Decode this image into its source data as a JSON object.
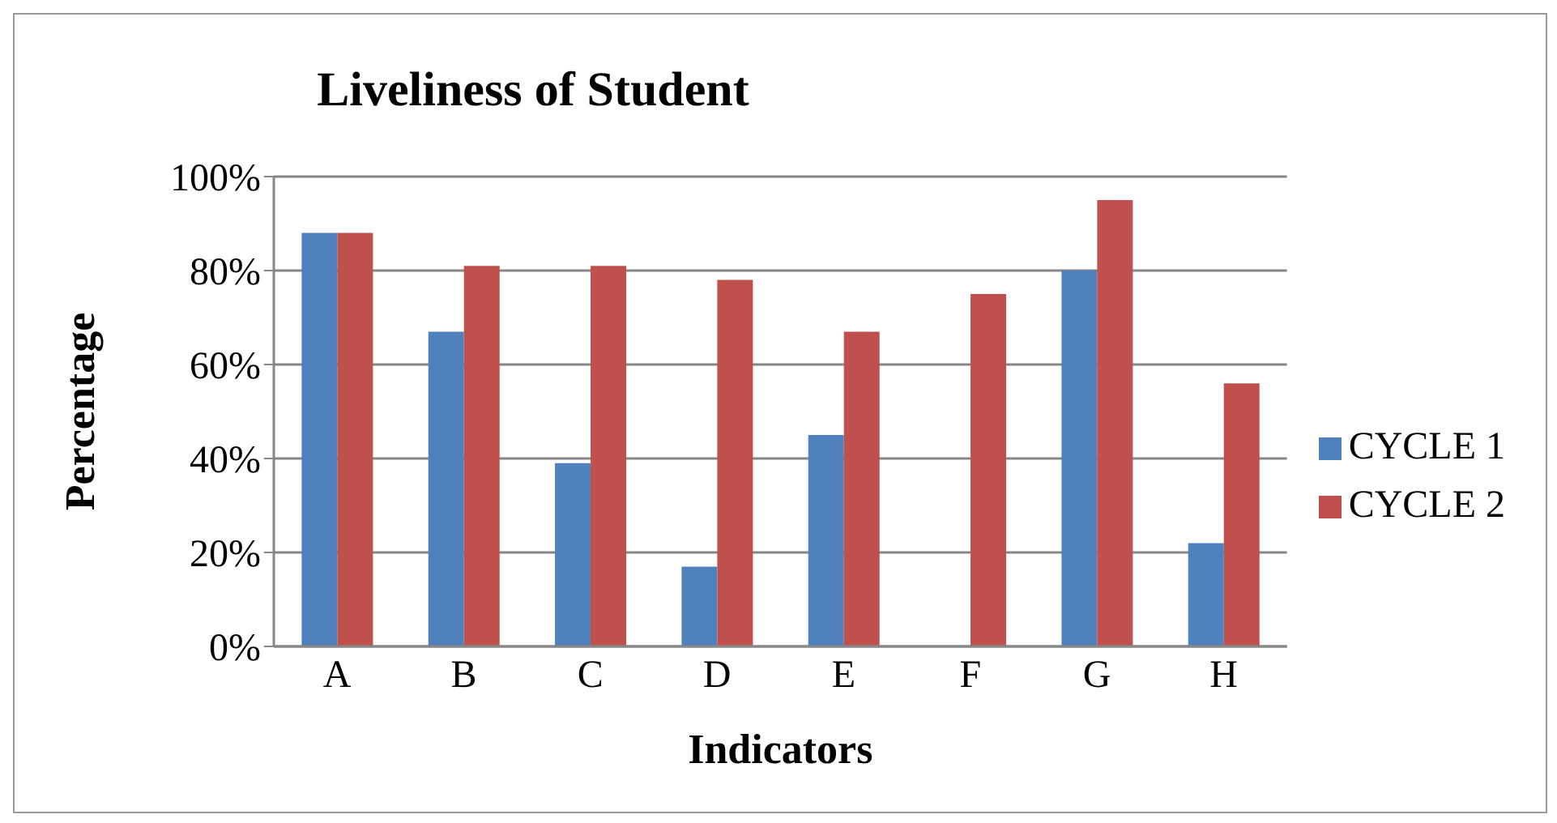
{
  "chart_data": {
    "type": "bar",
    "title": "Liveliness of Student",
    "xlabel": "Indicators",
    "ylabel": "Percentage",
    "categories": [
      "A",
      "B",
      "C",
      "D",
      "E",
      "F",
      "G",
      "H"
    ],
    "series": [
      {
        "name": "CYCLE 1",
        "color": "#4f81bd",
        "values": [
          88,
          67,
          39,
          17,
          45,
          0,
          80,
          22
        ]
      },
      {
        "name": "CYCLE 2",
        "color": "#c0504d",
        "values": [
          88,
          81,
          81,
          78,
          67,
          75,
          95,
          56
        ]
      }
    ],
    "ylim": [
      0,
      100
    ],
    "yticks": [
      {
        "value": 0,
        "label": "0%"
      },
      {
        "value": 20,
        "label": "20%"
      },
      {
        "value": 40,
        "label": "40%"
      },
      {
        "value": 60,
        "label": "60%"
      },
      {
        "value": 80,
        "label": "80%"
      },
      {
        "value": 100,
        "label": "100%"
      }
    ],
    "grid": "y",
    "legend": "right"
  }
}
